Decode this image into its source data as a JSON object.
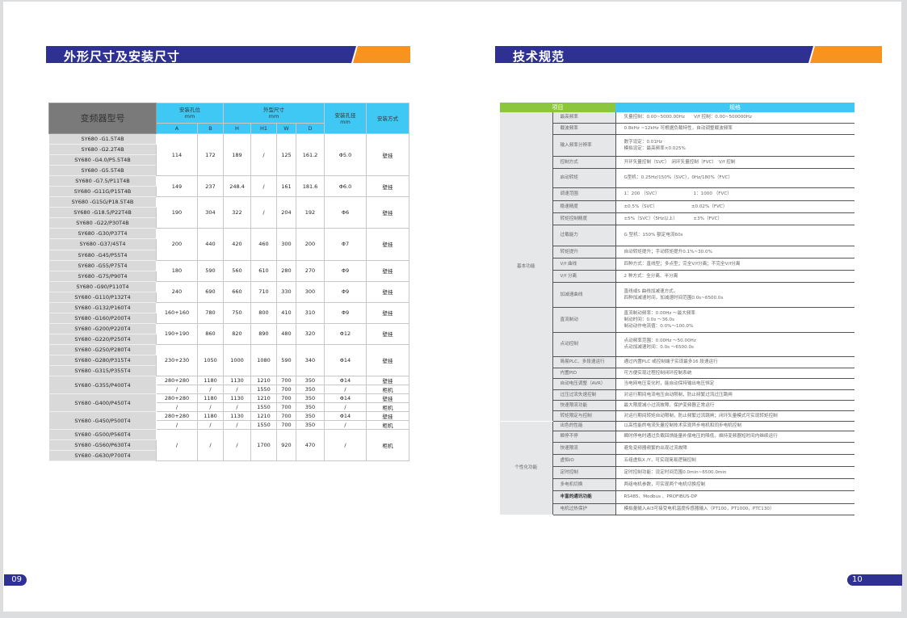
{
  "left_page": {
    "title": "外形尺寸及安装尺寸",
    "page_number": "09",
    "table": {
      "model_header": "变频器型号",
      "group_headers": [
        {
          "label": "安装孔位",
          "unit": "mm"
        },
        {
          "label": "外型尺寸",
          "unit": "mm"
        },
        {
          "label": "安装孔径",
          "unit": "mm"
        },
        {
          "label": "安装方式"
        }
      ],
      "sub_headers": [
        "A",
        "B",
        "H",
        "H1",
        "W",
        "D"
      ],
      "groups": [
        {
          "models": [
            "SY680 -G1.5T4B",
            "SY680 -G2.2T4B",
            "SY680 -G4.0/P5.5T4B",
            "SY680 -G5.5T4B"
          ],
          "rows": [
            [
              "114",
              "172",
              "189",
              "/",
              "125",
              "161.2",
              "Φ5.0",
              "壁挂"
            ]
          ]
        },
        {
          "models": [
            "SY680 -G7.5/P11T4B",
            "SY680 -G11G/P15T4B"
          ],
          "rows": [
            [
              "149",
              "237",
              "248.4",
              "/",
              "161",
              "181.6",
              "Φ6.0",
              "壁挂"
            ]
          ]
        },
        {
          "models": [
            "SY680 -G15G/P18.5T4B",
            "SY680 -G18.5/P22T4B",
            "SY680 -G22/P30T4B"
          ],
          "rows": [
            [
              "190",
              "304",
              "322",
              "/",
              "204",
              "192",
              "Φ6",
              "壁挂"
            ]
          ]
        },
        {
          "models": [
            "SY680 -G30/P37T4",
            "SY680 -G37/45T4",
            "SY680 -G45/P55T4"
          ],
          "rows": [
            [
              "200",
              "440",
              "420",
              "460",
              "300",
              "200",
              "Φ7",
              "壁挂"
            ]
          ]
        },
        {
          "models": [
            "SY680 -G55/P75T4",
            "SY680 -G75/P90T4"
          ],
          "rows": [
            [
              "180",
              "590",
              "560",
              "610",
              "280",
              "270",
              "Φ9",
              "壁挂"
            ]
          ]
        },
        {
          "models": [
            "SY680 -G90/P110T4",
            "SY680 -G110/P132T4"
          ],
          "rows": [
            [
              "240",
              "690",
              "660",
              "710",
              "330",
              "300",
              "Φ9",
              "壁挂"
            ]
          ]
        },
        {
          "models": [
            "SY680 -G132/P160T4",
            "SY680 -G160/P200T4"
          ],
          "rows": [
            [
              "160+160",
              "780",
              "750",
              "800",
              "410",
              "310",
              "Φ9",
              "壁挂"
            ]
          ]
        },
        {
          "models": [
            "SY680 -G200/P220T4",
            "SY680 -G220/P250T4"
          ],
          "rows": [
            [
              "190+190",
              "860",
              "820",
              "890",
              "480",
              "320",
              "Φ12",
              "壁挂"
            ]
          ]
        },
        {
          "models": [
            "SY680 -G250/P280T4",
            "SY680 -G280/P315T4",
            "SY680 -G315/P355T4"
          ],
          "rows": [
            [
              "230+230",
              "1050",
              "1000",
              "1080",
              "590",
              "340",
              "Φ14",
              "壁挂"
            ]
          ]
        },
        {
          "models": [
            "SY680 -G355/P400T4"
          ],
          "rows": [
            [
              "280+280",
              "1180",
              "1130",
              "1210",
              "700",
              "350",
              "Φ14",
              "壁挂"
            ],
            [
              "/",
              "/",
              "/",
              "1550",
              "700",
              "350",
              "/",
              "柜机"
            ]
          ]
        },
        {
          "models": [
            "SY680 -G400/P450T4"
          ],
          "rows": [
            [
              "280+280",
              "1180",
              "1130",
              "1210",
              "700",
              "350",
              "Φ14",
              "壁挂"
            ],
            [
              "/",
              "/",
              "/",
              "1550",
              "700",
              "350",
              "/",
              "柜机"
            ]
          ]
        },
        {
          "models": [
            "SY680 -G450/P500T4"
          ],
          "rows": [
            [
              "280+280",
              "1180",
              "1130",
              "1210",
              "700",
              "350",
              "Φ14",
              "壁挂"
            ],
            [
              "/",
              "/",
              "/",
              "1550",
              "700",
              "350",
              "/",
              "柜机"
            ]
          ]
        },
        {
          "models": [
            "SY680 -G500/P560T4",
            "SY680 -G560/P630T4",
            "SY680 -G630/P700T4"
          ],
          "rows": [
            [
              "/",
              "/",
              "/",
              "1700",
              "920",
              "470",
              "/",
              "柜机"
            ]
          ]
        }
      ]
    }
  },
  "right_page": {
    "title": "技术规范",
    "page_number": "10",
    "table": {
      "header_item": "项目",
      "header_spec": "规格",
      "colors": {
        "item_header": "#8cc63f",
        "spec_header": "#40c8f4"
      },
      "categories": [
        {
          "name": "基本功能",
          "items": [
            {
              "label": "最高频率",
              "lines": [
                "矢量控制：0.00~5000.00Hz　　V/f 控制：0.00~500000Hz"
              ]
            },
            {
              "label": "载波频率",
              "lines": [
                "0.8kHz ~12kHz 可根据负载特性，自动调整载波频率"
              ]
            },
            {
              "label": "输入频率分辨率",
              "lines": [
                "数字设定：0.01Hz",
                "模拟设定：最高频率×0.025%"
              ]
            },
            {
              "label": "控制方式",
              "lines": [
                "开环矢量控制（SVC）　闭环矢量控制（FVC）　V/f 控制"
              ]
            },
            {
              "label": "启动转矩",
              "lines": [
                "G型机：0.25Hz/150%（SVC），0Hz/180%（FVC）"
              ]
            },
            {
              "label": "调速范围",
              "lines": [
                "1：200 （SVC）　　　　　　　　1：1000 （FVC）"
              ]
            },
            {
              "label": "稳速精度",
              "lines": [
                "±0.5%（SVC）　　　　　　　　±0.02%（FVC）"
              ]
            },
            {
              "label": "转矩控制精度",
              "lines": [
                "±5%（SVC）（5Hz以上）　　　　±3%（FVC）"
              ]
            },
            {
              "label": "过载能力",
              "lines": [
                "G 型机：150% 额定电流60s"
              ]
            },
            {
              "label": "转矩提升",
              "lines": [
                "自动转矩提升；手动转矩提升0.1%~30.0%"
              ]
            },
            {
              "label": "V/f 曲线",
              "lines": [
                "四种方式：直线型；多点型；完全V/f分离；不完全V/f分离"
              ]
            },
            {
              "label": "V/f 分离",
              "lines": [
                "2 种方式：全分离、半分离"
              ]
            },
            {
              "label": "加减速曲线",
              "lines": [
                "直线或S 曲线加减速方式。",
                "四种加减速时间，加减速时间范围0.0s~6500.0s"
              ]
            },
            {
              "label": "直流制动",
              "lines": [
                "直流制动频率：0.00Hz ～最大频率",
                "制动时间：0.0s ～36.0s",
                "制动动作电流值：0.0%～100.0%"
              ]
            },
            {
              "label": "点动控制",
              "lines": [
                "点动频率范围：0.00Hz ～50.00Hz",
                "点动加减速时间：0.0s ～6500.0s"
              ]
            },
            {
              "label": "简易PLC、多段速运行",
              "lines": [
                "通过内置PLC 或控制端子实现最多16 段速运行"
              ]
            },
            {
              "label": "内置PID",
              "lines": [
                "可方便实现过程控制闭环控制系统"
              ]
            },
            {
              "label": "自动电压调整（AVR）",
              "lines": [
                "当电网电压变化时，能自动保持输出电压恒定"
              ]
            },
            {
              "label": "过压过流失速控制",
              "lines": [
                "对运行期间电流电压自动限制，防止频繁过流过压跳闸"
              ]
            },
            {
              "label": "快速限流功能",
              "lines": [
                "最大限度减小过流故障，保护变频器正常运行"
              ]
            },
            {
              "label": "转矩限定与控制",
              "lines": [
                "对运行期间转矩自动限制，防止频繁过流跳闸；闭环矢量模式可实现转矩控制"
              ]
            }
          ]
        },
        {
          "name": "个性化功能",
          "items": [
            {
              "label": "出色的性能",
              "lines": [
                "以高性能的电流矢量控制技术实现异步电机和同步电机控制"
              ]
            },
            {
              "label": "瞬停不停",
              "lines": [
                "瞬时停电时通过负载回馈能量补偿电压的降低，维持变频器短时间内继续运行"
              ]
            },
            {
              "label": "快速限流",
              "lines": [
                "避免变频器频繁的出现过流故障"
              ]
            },
            {
              "label": "虚拟IO",
              "lines": [
                "五组虚拟X /Y，可实现简易逻辑控制"
              ]
            },
            {
              "label": "定时控制",
              "lines": [
                "定时控制功能：设定时间范围0.0min~6500.0min"
              ]
            },
            {
              "label": "多电机切换",
              "lines": [
                "两组电机参数，可实现两个电机切换控制"
              ]
            },
            {
              "label": "丰富的通讯功能",
              "bold": true,
              "lines": [
                "RS485、Modbus 、PROFIBUS-DP"
              ]
            },
            {
              "label": "电机过热保护",
              "lines": [
                "模拟量输入AI3可接受电机温度传感器输入（PT100，PT1000，PTC130）"
              ]
            }
          ]
        }
      ]
    }
  }
}
